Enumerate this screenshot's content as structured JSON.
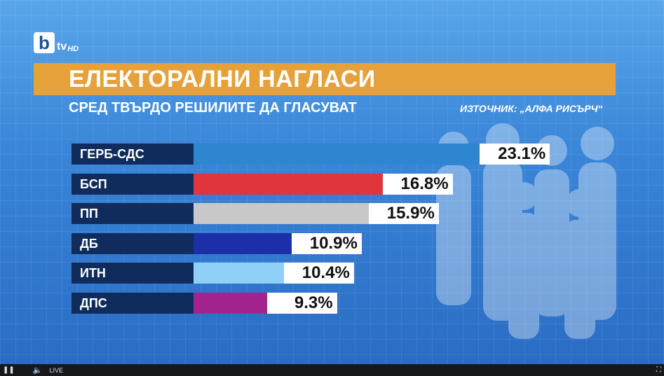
{
  "brand": {
    "logo_letter": "b",
    "logo_text": "tv",
    "logo_hd": "HD"
  },
  "title": "ЕЛЕКТОРАЛНИ НАГЛАСИ",
  "subtitle": "СРЕД ТВЪРДО РЕШИЛИТЕ ДА ГЛАСУВАТ",
  "source": "ИЗТОЧНИК: „АЛФА РИСЪРЧ“",
  "player": {
    "live_label": "LIVE",
    "play_icon": "pause-icon",
    "volume_icon": "volume-icon",
    "fullscreen_icon": "fullscreen-icon"
  },
  "chart_data": {
    "type": "bar",
    "orientation": "horizontal",
    "title": "ЕЛЕКТОРАЛНИ НАГЛАСИ",
    "subtitle": "СРЕД ТВЪРДО РЕШИЛИТЕ ДА ГЛАСУВАТ",
    "categories": [
      "ГЕРБ-СДС",
      "БСП",
      "ПП",
      "ДБ",
      "ИТН",
      "ДПС"
    ],
    "values": [
      23.1,
      16.8,
      15.9,
      10.9,
      10.4,
      9.3
    ],
    "value_labels": [
      "23.1%",
      "16.8%",
      "15.9%",
      "10.9%",
      "10.4%",
      "9.3%"
    ],
    "colors": [
      "#2e86d0",
      "#e0353c",
      "#c8c8c8",
      "#1c2fa8",
      "#8fd0f6",
      "#a3238f"
    ],
    "unit": "%",
    "grid": false,
    "legend": "none"
  }
}
